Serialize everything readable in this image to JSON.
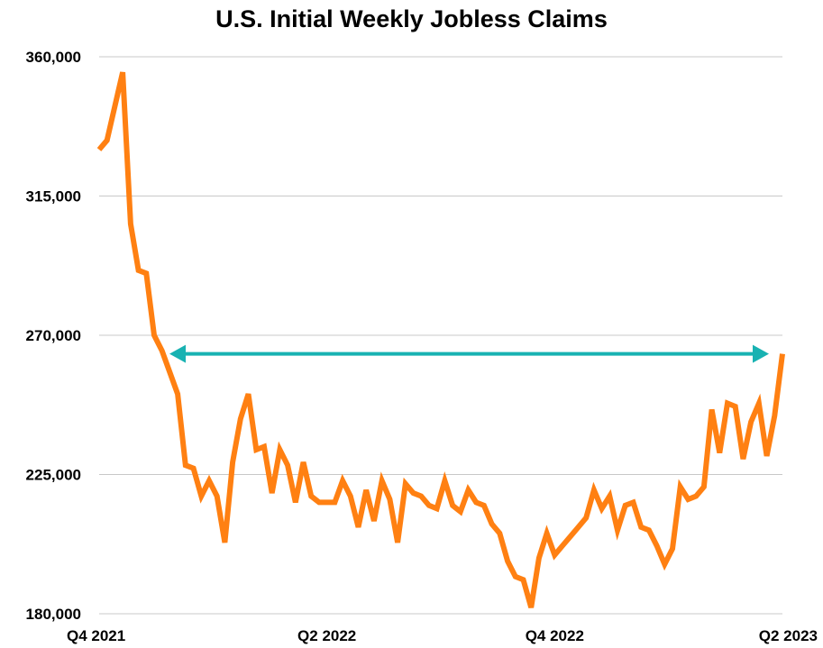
{
  "chart_data": {
    "type": "line",
    "title": "U.S. Initial Weekly Jobless Claims",
    "xlabel": "",
    "ylabel": "",
    "ylim": [
      180000,
      360000
    ],
    "y_ticks": [
      "360,000",
      "315,000",
      "270,000",
      "225,000",
      "180,000"
    ],
    "y_tick_values": [
      360000,
      315000,
      270000,
      225000,
      180000
    ],
    "x_ticks": [
      "Q4 2021",
      "Q2 2022",
      "Q4 2022",
      "Q2 2023"
    ],
    "grid": "horizontal",
    "colors": {
      "line": "#ff8012",
      "arrow": "#18b2b2",
      "grid": "#c8c8c8"
    },
    "annotation": {
      "type": "double-arrow",
      "y": 264000
    },
    "series": [
      {
        "values": [
          330000,
          333000,
          344000,
          355000,
          306000,
          291000,
          290000,
          270000,
          265000,
          258000,
          251000,
          228000,
          227000,
          218000,
          223000,
          218000,
          203000,
          229000,
          243000,
          251000,
          233000,
          234000,
          219000,
          233000,
          228000,
          216000,
          229000,
          218000,
          216000,
          216000,
          216000,
          223000,
          218000,
          208000,
          220000,
          210000,
          223000,
          217000,
          203000,
          222000,
          219000,
          218000,
          215000,
          214000,
          223000,
          215000,
          213000,
          220000,
          216000,
          215000,
          209000,
          206000,
          197000,
          192000,
          191000,
          182000,
          198000,
          206000,
          199000,
          202000,
          205000,
          208000,
          211000,
          220000,
          214000,
          218000,
          207000,
          215000,
          216000,
          208000,
          207000,
          202000,
          196000,
          201000,
          221000,
          217000,
          218000,
          221000,
          246000,
          232000,
          248000,
          247000,
          230000,
          242000,
          248000,
          231000,
          244000,
          264000
        ]
      }
    ]
  }
}
